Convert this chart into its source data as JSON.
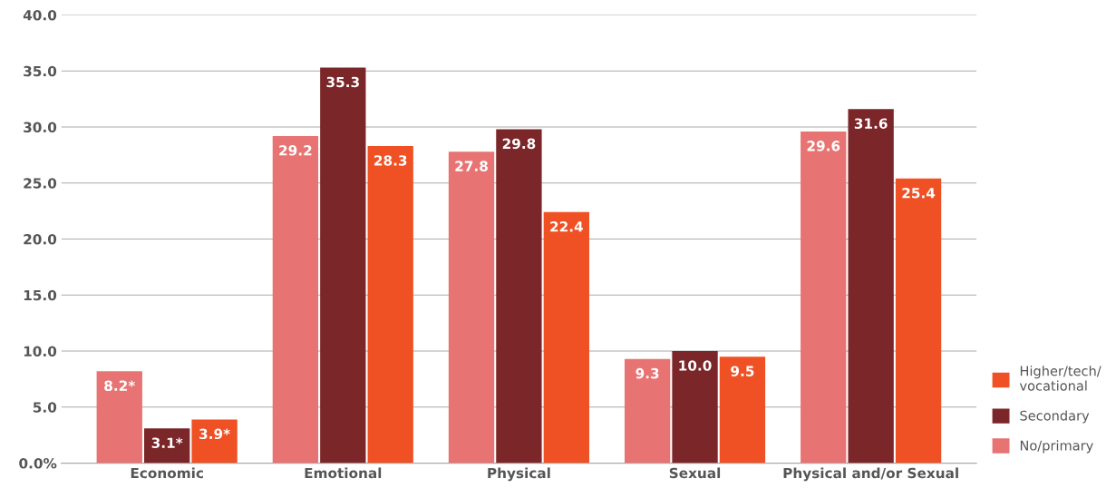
{
  "chart_data": {
    "type": "bar",
    "categories": [
      "Economic",
      "Emotional",
      "Physical",
      "Sexual",
      "Physical and/or Sexual"
    ],
    "series": [
      {
        "name": "No/primary",
        "color": "#e87373",
        "values": [
          8.2,
          29.2,
          27.8,
          9.3,
          29.6
        ],
        "value_labels": [
          "8.2*",
          "29.2",
          "27.8",
          "9.3",
          "29.6"
        ]
      },
      {
        "name": "Secondary",
        "color": "#7b2628",
        "values": [
          3.1,
          35.3,
          29.8,
          10.0,
          31.6
        ],
        "value_labels": [
          "3.1*",
          "35.3",
          "29.8",
          "10.0",
          "31.6"
        ]
      },
      {
        "name": "Higher/tech/\nvocational",
        "color": "#ef5124",
        "values": [
          3.9,
          28.3,
          22.4,
          9.5,
          25.4
        ],
        "value_labels": [
          "3.9*",
          "28.3",
          "22.4",
          "9.5",
          "25.4"
        ]
      }
    ],
    "ylim": [
      0,
      40
    ],
    "yticks": [
      {
        "value": 0,
        "label": "0.0%"
      },
      {
        "value": 5,
        "label": "5.0"
      },
      {
        "value": 10,
        "label": "10.0"
      },
      {
        "value": 15,
        "label": "15.0"
      },
      {
        "value": 20,
        "label": "20.0"
      },
      {
        "value": 25,
        "label": "25.0"
      },
      {
        "value": 30,
        "label": "30.0"
      },
      {
        "value": 35,
        "label": "35.0"
      },
      {
        "value": 40,
        "label": "40.0"
      }
    ],
    "grid": "y",
    "legend": "right"
  }
}
